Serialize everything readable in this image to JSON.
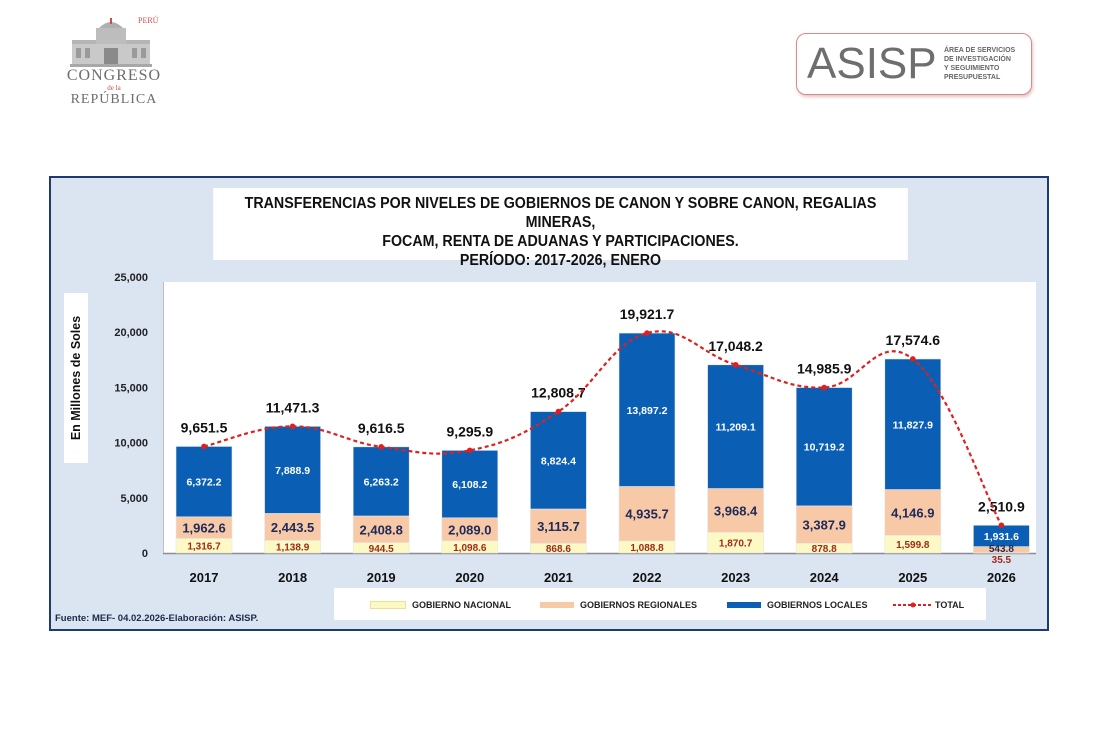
{
  "header": {
    "congreso_logo": {
      "icon": "palace-building-icon",
      "country": "PERÚ",
      "line1": "CONGRESO",
      "line2": "de la",
      "line3": "REPÚBLICA"
    },
    "asisp_logo": {
      "acronym": "ASISP",
      "sub_lines": [
        "ÁREA DE SERVICIOS",
        "DE INVESTIGACIÓN",
        "Y SEGUIMIENTO",
        "PRESUPUESTAL"
      ]
    }
  },
  "colors": {
    "nacional": "#fdf9c4",
    "regionales": "#f7c9a6",
    "locales": "#0a5fb4",
    "total": "#e0201e",
    "frame_bg": "#dbe4f1",
    "frame_border": "#1f3a6e"
  },
  "chart_data": {
    "type": "bar",
    "stacked": true,
    "title_lines": [
      "TRANSFERENCIAS POR NIVELES DE GOBIERNOS DE CANON Y SOBRE CANON, REGALIAS MINERAS,",
      "FOCAM, RENTA DE ADUANAS Y PARTICIPACIONES.",
      "PERÍODO: 2017-2026, ENERO"
    ],
    "ylabel": "En Millones de Soles",
    "xlabel": "",
    "ylim": [
      0,
      25000
    ],
    "yticks": [
      0,
      5000,
      10000,
      15000,
      20000,
      25000
    ],
    "ytick_labels": [
      "0",
      "5,000",
      "10,000",
      "15,000",
      "20,000",
      "25,000"
    ],
    "categories": [
      "2017",
      "2018",
      "2019",
      "2020",
      "2021",
      "2022",
      "2023",
      "2024",
      "2025",
      "2026"
    ],
    "series": [
      {
        "name": "GOBIERNO NACIONAL",
        "values": [
          1316.7,
          1138.9,
          944.5,
          1098.6,
          868.6,
          1088.8,
          1870.7,
          878.8,
          1599.8,
          35.5
        ],
        "labels": [
          "1,316.7",
          "1,138.9",
          "944.5",
          "1,098.6",
          "868.6",
          "1,088.8",
          "1,870.7",
          "878.8",
          "1,599.8",
          "35.5"
        ]
      },
      {
        "name": "GOBIERNOS REGIONALES",
        "values": [
          1962.6,
          2443.5,
          2408.8,
          2089.0,
          3115.7,
          4935.7,
          3968.4,
          3387.9,
          4146.9,
          543.8
        ],
        "labels": [
          "1,962.6",
          "2,443.5",
          "2,408.8",
          "2,089.0",
          "3,115.7",
          "4,935.7",
          "3,968.4",
          "3,387.9",
          "4,146.9",
          "543.8"
        ]
      },
      {
        "name": "GOBIERNOS LOCALES",
        "values": [
          6372.2,
          7888.9,
          6263.2,
          6108.2,
          8824.4,
          13897.2,
          11209.1,
          10719.2,
          11827.9,
          1931.6
        ],
        "labels": [
          "6,372.2",
          "7,888.9",
          "6,263.2",
          "6,108.2",
          "8,824.4",
          "13,897.2",
          "11,209.1",
          "10,719.2",
          "11,827.9",
          "1,931.6"
        ]
      },
      {
        "name": "TOTAL",
        "type": "line",
        "values": [
          9651.5,
          11471.3,
          9616.5,
          9295.9,
          12808.7,
          19921.7,
          17048.2,
          14985.9,
          17574.6,
          2510.9
        ],
        "labels": [
          "9,651.5",
          "11,471.3",
          "9,616.5",
          "9,295.9",
          "12,808.7",
          "19,921.7",
          "17,048.2",
          "14,985.9",
          "17,574.6",
          "2,510.9"
        ]
      }
    ],
    "legend": [
      "GOBIERNO NACIONAL",
      "GOBIERNOS REGIONALES",
      "GOBIERNOS LOCALES",
      "TOTAL"
    ],
    "legend_position": "bottom",
    "grid": false,
    "source": "Fuente: MEF- 04.02.2026-Elaboración:  ASISP."
  }
}
